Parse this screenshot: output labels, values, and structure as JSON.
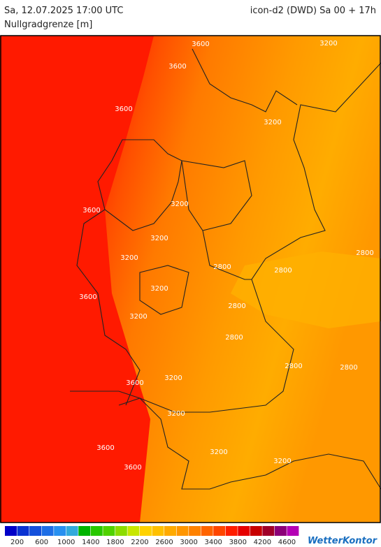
{
  "header": {
    "datetime": "Sa, 12.07.2025 17:00 UTC",
    "model": "icon-d2 (DWD) Sa 00 + 17h",
    "parameter": "Nullgradgrenze [m]"
  },
  "map": {
    "contour_labels": [
      "3600",
      "3600",
      "3600",
      "3600",
      "3600",
      "3600",
      "3600",
      "3600",
      "3200",
      "3200",
      "3200",
      "3200",
      "3200",
      "3200",
      "3200",
      "3200",
      "3200",
      "3200",
      "3200",
      "2800",
      "2800",
      "2800",
      "2800",
      "2800",
      "2800",
      "2800"
    ]
  },
  "legend": {
    "colors": [
      "#0000c8",
      "#0a32d2",
      "#1450dc",
      "#1e6ee6",
      "#2890f0",
      "#32aadc",
      "#00b400",
      "#28c800",
      "#50d200",
      "#8cdc00",
      "#c8e600",
      "#ffd200",
      "#ffc000",
      "#ffaa00",
      "#ff9600",
      "#ff8200",
      "#ff6400",
      "#ff4600",
      "#ff1e00",
      "#e60000",
      "#c80000",
      "#a00028",
      "#8c0078",
      "#b400b4"
    ],
    "labels": [
      "200",
      "600",
      "1000",
      "1400",
      "1800",
      "2200",
      "2600",
      "3000",
      "3400",
      "3800",
      "4200",
      "4600"
    ]
  },
  "logo": "WetterKontor"
}
